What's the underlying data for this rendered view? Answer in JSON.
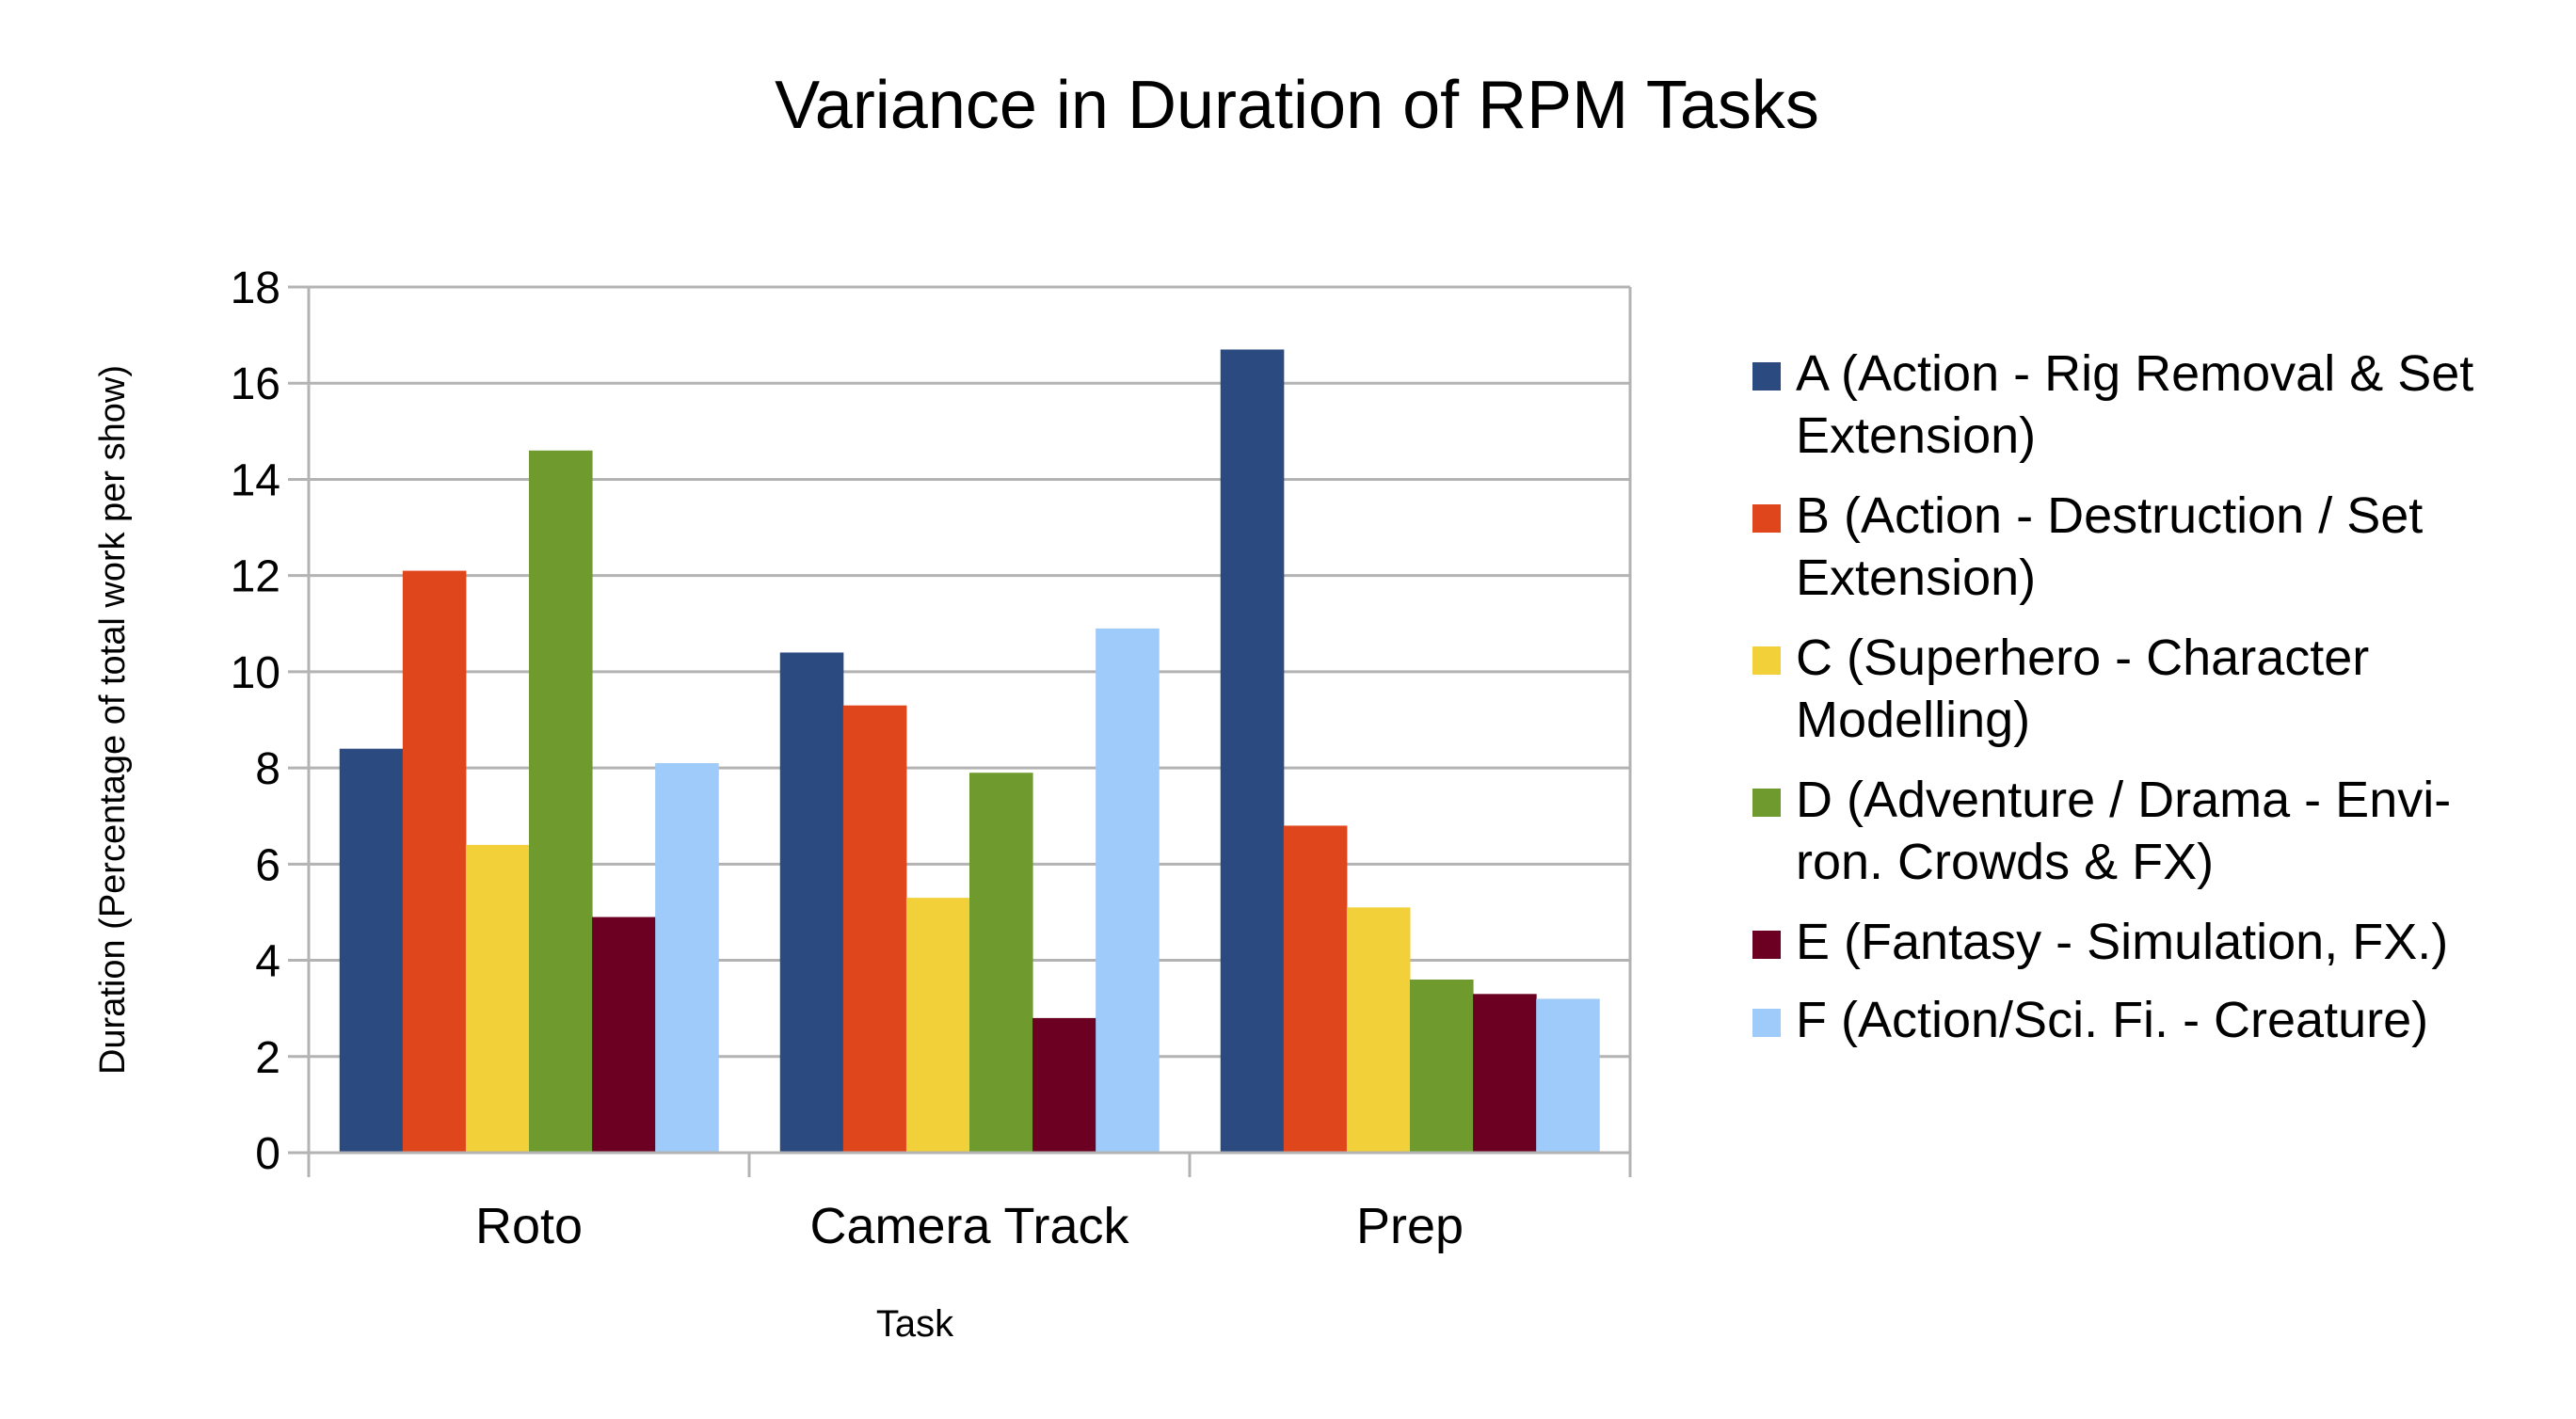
{
  "chart_data": {
    "type": "bar",
    "title": "Variance in Duration of RPM Tasks",
    "xlabel": "Task",
    "ylabel": "Duration (Percentage of total work per show)",
    "ylim": [
      0,
      18
    ],
    "yticks": [
      0,
      2,
      4,
      6,
      8,
      10,
      12,
      14,
      16,
      18
    ],
    "grid": true,
    "legend_position": "right",
    "categories": [
      "Roto",
      "Camera Track",
      "Prep"
    ],
    "series": [
      {
        "name": "A (Action - Rig Removal & Set Extension)",
        "legend_lines": [
          "A (Action - Rig Removal & Set",
          "Extension)"
        ],
        "color": "#2a4a80",
        "values": [
          8.4,
          10.4,
          16.7
        ]
      },
      {
        "name": "B (Action - Destruction / Set Extension)",
        "legend_lines": [
          "B (Action - Destruction / Set",
          "Extension)"
        ],
        "color": "#e0461c",
        "values": [
          12.1,
          9.3,
          6.8
        ]
      },
      {
        "name": "C (Superhero - Character Modelling)",
        "legend_lines": [
          "C (Superhero - Character",
          "Modelling)"
        ],
        "color": "#f2d03a",
        "values": [
          6.4,
          5.3,
          5.1
        ]
      },
      {
        "name": "D (Adventure / Drama - Environ. Crowds & FX)",
        "legend_lines": [
          "D (Adventure / Drama - Envi-",
          "ron. Crowds & FX)"
        ],
        "color": "#6f9b2e",
        "values": [
          14.6,
          7.9,
          3.6
        ]
      },
      {
        "name": "E (Fantasy - Simulation, FX.)",
        "legend_lines": [
          "E (Fantasy - Simulation, FX.)"
        ],
        "color": "#6c0022",
        "values": [
          4.9,
          2.8,
          3.3
        ]
      },
      {
        "name": "F (Action/Sci. Fi. - Creature)",
        "legend_lines": [
          "F (Action/Sci. Fi. - Creature)"
        ],
        "color": "#9ecbfa",
        "values": [
          8.1,
          10.9,
          3.2
        ]
      }
    ]
  }
}
